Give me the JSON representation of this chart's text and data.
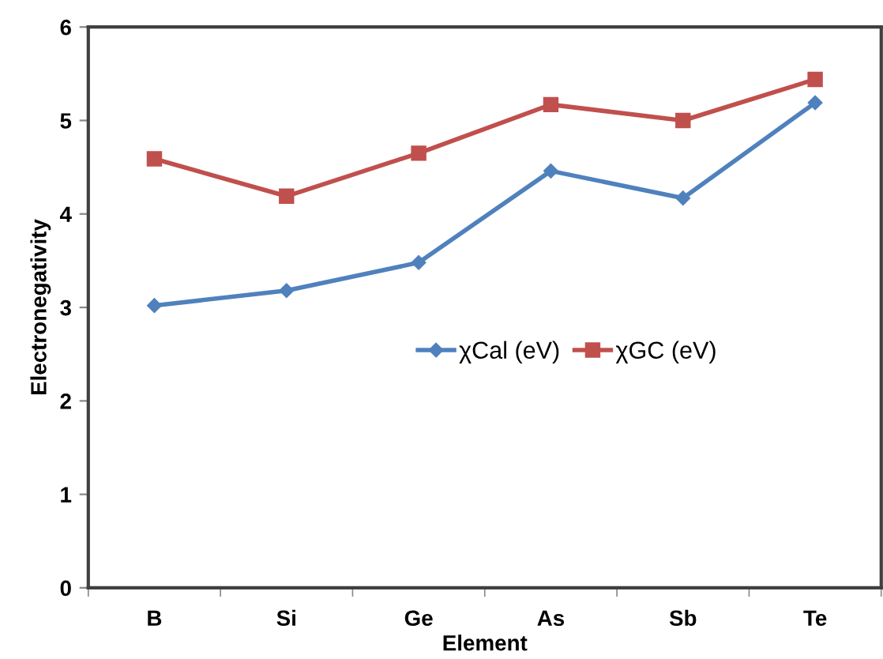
{
  "chart_data": {
    "type": "line",
    "xlabel": "Element",
    "ylabel": "Electronegativity",
    "categories": [
      "B",
      "Si",
      "Ge",
      "As",
      "Sb",
      "Te"
    ],
    "series": [
      {
        "name": "χCal (eV)",
        "color": "#4f81bd",
        "marker": "diamond",
        "values": [
          3.02,
          3.18,
          3.48,
          4.46,
          4.17,
          5.19
        ]
      },
      {
        "name": "χGC (eV)",
        "color": "#c0504d",
        "marker": "square",
        "values": [
          4.59,
          4.19,
          4.65,
          5.17,
          5.0,
          5.44
        ]
      }
    ],
    "ylim": [
      0,
      6
    ],
    "yticks": [
      0,
      1,
      2,
      3,
      4,
      5,
      6
    ],
    "grid": false,
    "legend": "center right",
    "line_style": "solid"
  }
}
